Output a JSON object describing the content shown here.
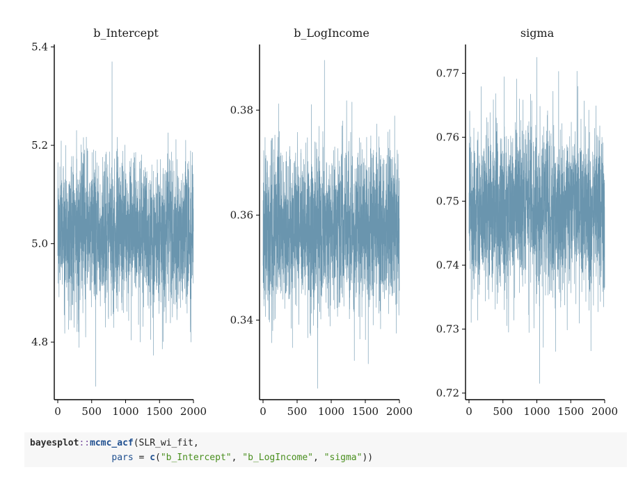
{
  "chart_data": [
    {
      "type": "line",
      "title": "b_Intercept",
      "x_ticks": [
        0,
        500,
        1000,
        1500,
        2000
      ],
      "y_ticks": [
        4.8,
        5.0,
        5.2,
        5.4
      ],
      "xlim": [
        0,
        2000
      ],
      "ylim": [
        4.69,
        5.405
      ],
      "n_draws": 2000,
      "center": 5.025,
      "spread_sd": 0.075,
      "min": 4.71,
      "max": 5.37,
      "series": [
        {
          "values_summary": "MCMC trace around 5.02, range 4.71–5.37"
        }
      ]
    },
    {
      "type": "line",
      "title": "b_LogIncome",
      "x_ticks": [
        0,
        500,
        1000,
        1500,
        2000
      ],
      "y_ticks": [
        0.34,
        0.36,
        0.38
      ],
      "xlim": [
        0,
        2000
      ],
      "ylim": [
        0.3255,
        0.3925
      ],
      "n_draws": 2000,
      "center": 0.3575,
      "spread_sd": 0.0075,
      "min": 0.327,
      "max": 0.3895,
      "series": [
        {
          "values_summary": "MCMC trace around 0.357, range 0.327–0.390"
        }
      ]
    },
    {
      "type": "line",
      "title": "sigma",
      "x_ticks": [
        0,
        500,
        1000,
        1500,
        2000
      ],
      "y_ticks": [
        0.72,
        0.73,
        0.74,
        0.75,
        0.76,
        0.77
      ],
      "xlim": [
        0,
        2000
      ],
      "ylim": [
        0.7195,
        0.7745
      ],
      "n_draws": 2000,
      "center": 0.7485,
      "spread_sd": 0.0065,
      "min": 0.7215,
      "max": 0.7725,
      "series": [
        {
          "values_summary": "MCMC trace around 0.748, range 0.721–0.773"
        }
      ]
    }
  ],
  "style": {
    "line_color": "#6a95ae",
    "axis_color": "#000000"
  },
  "code": {
    "line1": {
      "pkg": "bayesplot",
      "op": "::",
      "fn": "mcmc_acf",
      "rest": "(SLR_wi_fit,"
    },
    "line2": {
      "indent": "               ",
      "arg": "pars",
      "eq": " = ",
      "c": "c",
      "open": "(",
      "s1": "\"b_Intercept\"",
      "sep1": ", ",
      "s2": "\"b_LogIncome\"",
      "sep2": ", ",
      "s3": "\"sigma\"",
      "close": "))"
    }
  }
}
